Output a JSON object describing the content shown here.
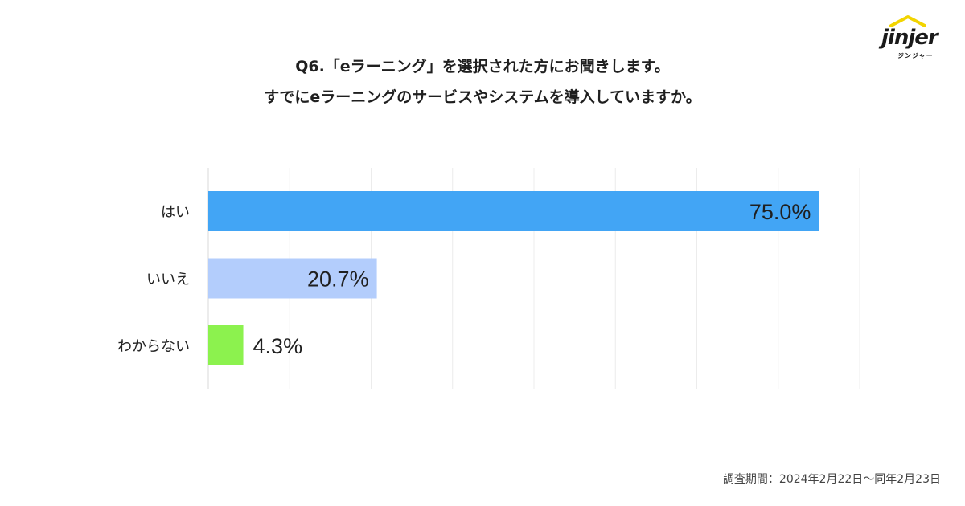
{
  "title_line1": "Q6.「eラーニング」を選択された方にお聞きします。",
  "title_line2": "すでにeラーニングのサービスやシステムを導入していますか。",
  "logo": {
    "wordmark": "jinjer",
    "kana": "ジンジャー",
    "roof_color": "#f2d400"
  },
  "footnote": "調査期間：2024年2月22日〜同年2月23日",
  "chart_data": {
    "type": "bar",
    "orientation": "horizontal",
    "categories": [
      "はい",
      "いいえ",
      "わからない"
    ],
    "values": [
      75.0,
      20.7,
      4.3
    ],
    "data_labels": [
      "75.0%",
      "20.7%",
      "4.3%"
    ],
    "colors": [
      "#42a5f5",
      "#b3cdfc",
      "#8cf24e"
    ],
    "xlim": [
      0,
      80
    ],
    "grid": true,
    "title": "",
    "xlabel": "",
    "ylabel": ""
  }
}
